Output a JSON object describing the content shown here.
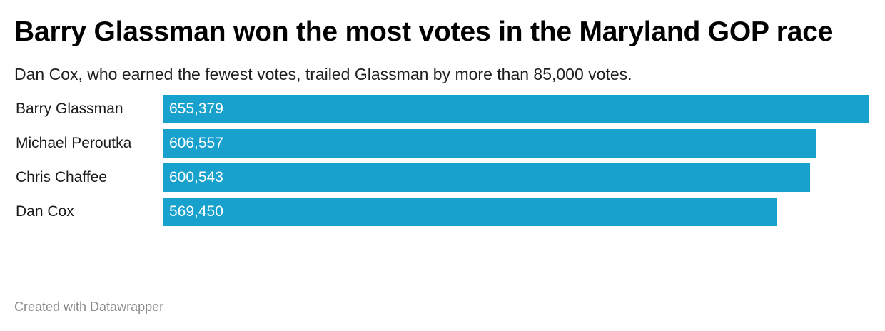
{
  "chart_data": {
    "type": "bar",
    "orientation": "horizontal",
    "title": "Barry Glassman won the most votes in the Maryland GOP race",
    "subtitle": "Dan Cox, who earned the fewest votes, trailed Glassman by more than 85,000 votes.",
    "categories": [
      "Barry Glassman",
      "Michael Peroutka",
      "Chris Chaffee",
      "Dan Cox"
    ],
    "values": [
      655379,
      606557,
      600543,
      569450
    ],
    "value_labels": [
      "655,379",
      "606,557",
      "600,543",
      "569,450"
    ],
    "xlim": [
      0,
      655379
    ],
    "bar_color": "#18a1cd",
    "grid": false,
    "legend": "none"
  },
  "footer": {
    "credit": "Created with Datawrapper"
  }
}
